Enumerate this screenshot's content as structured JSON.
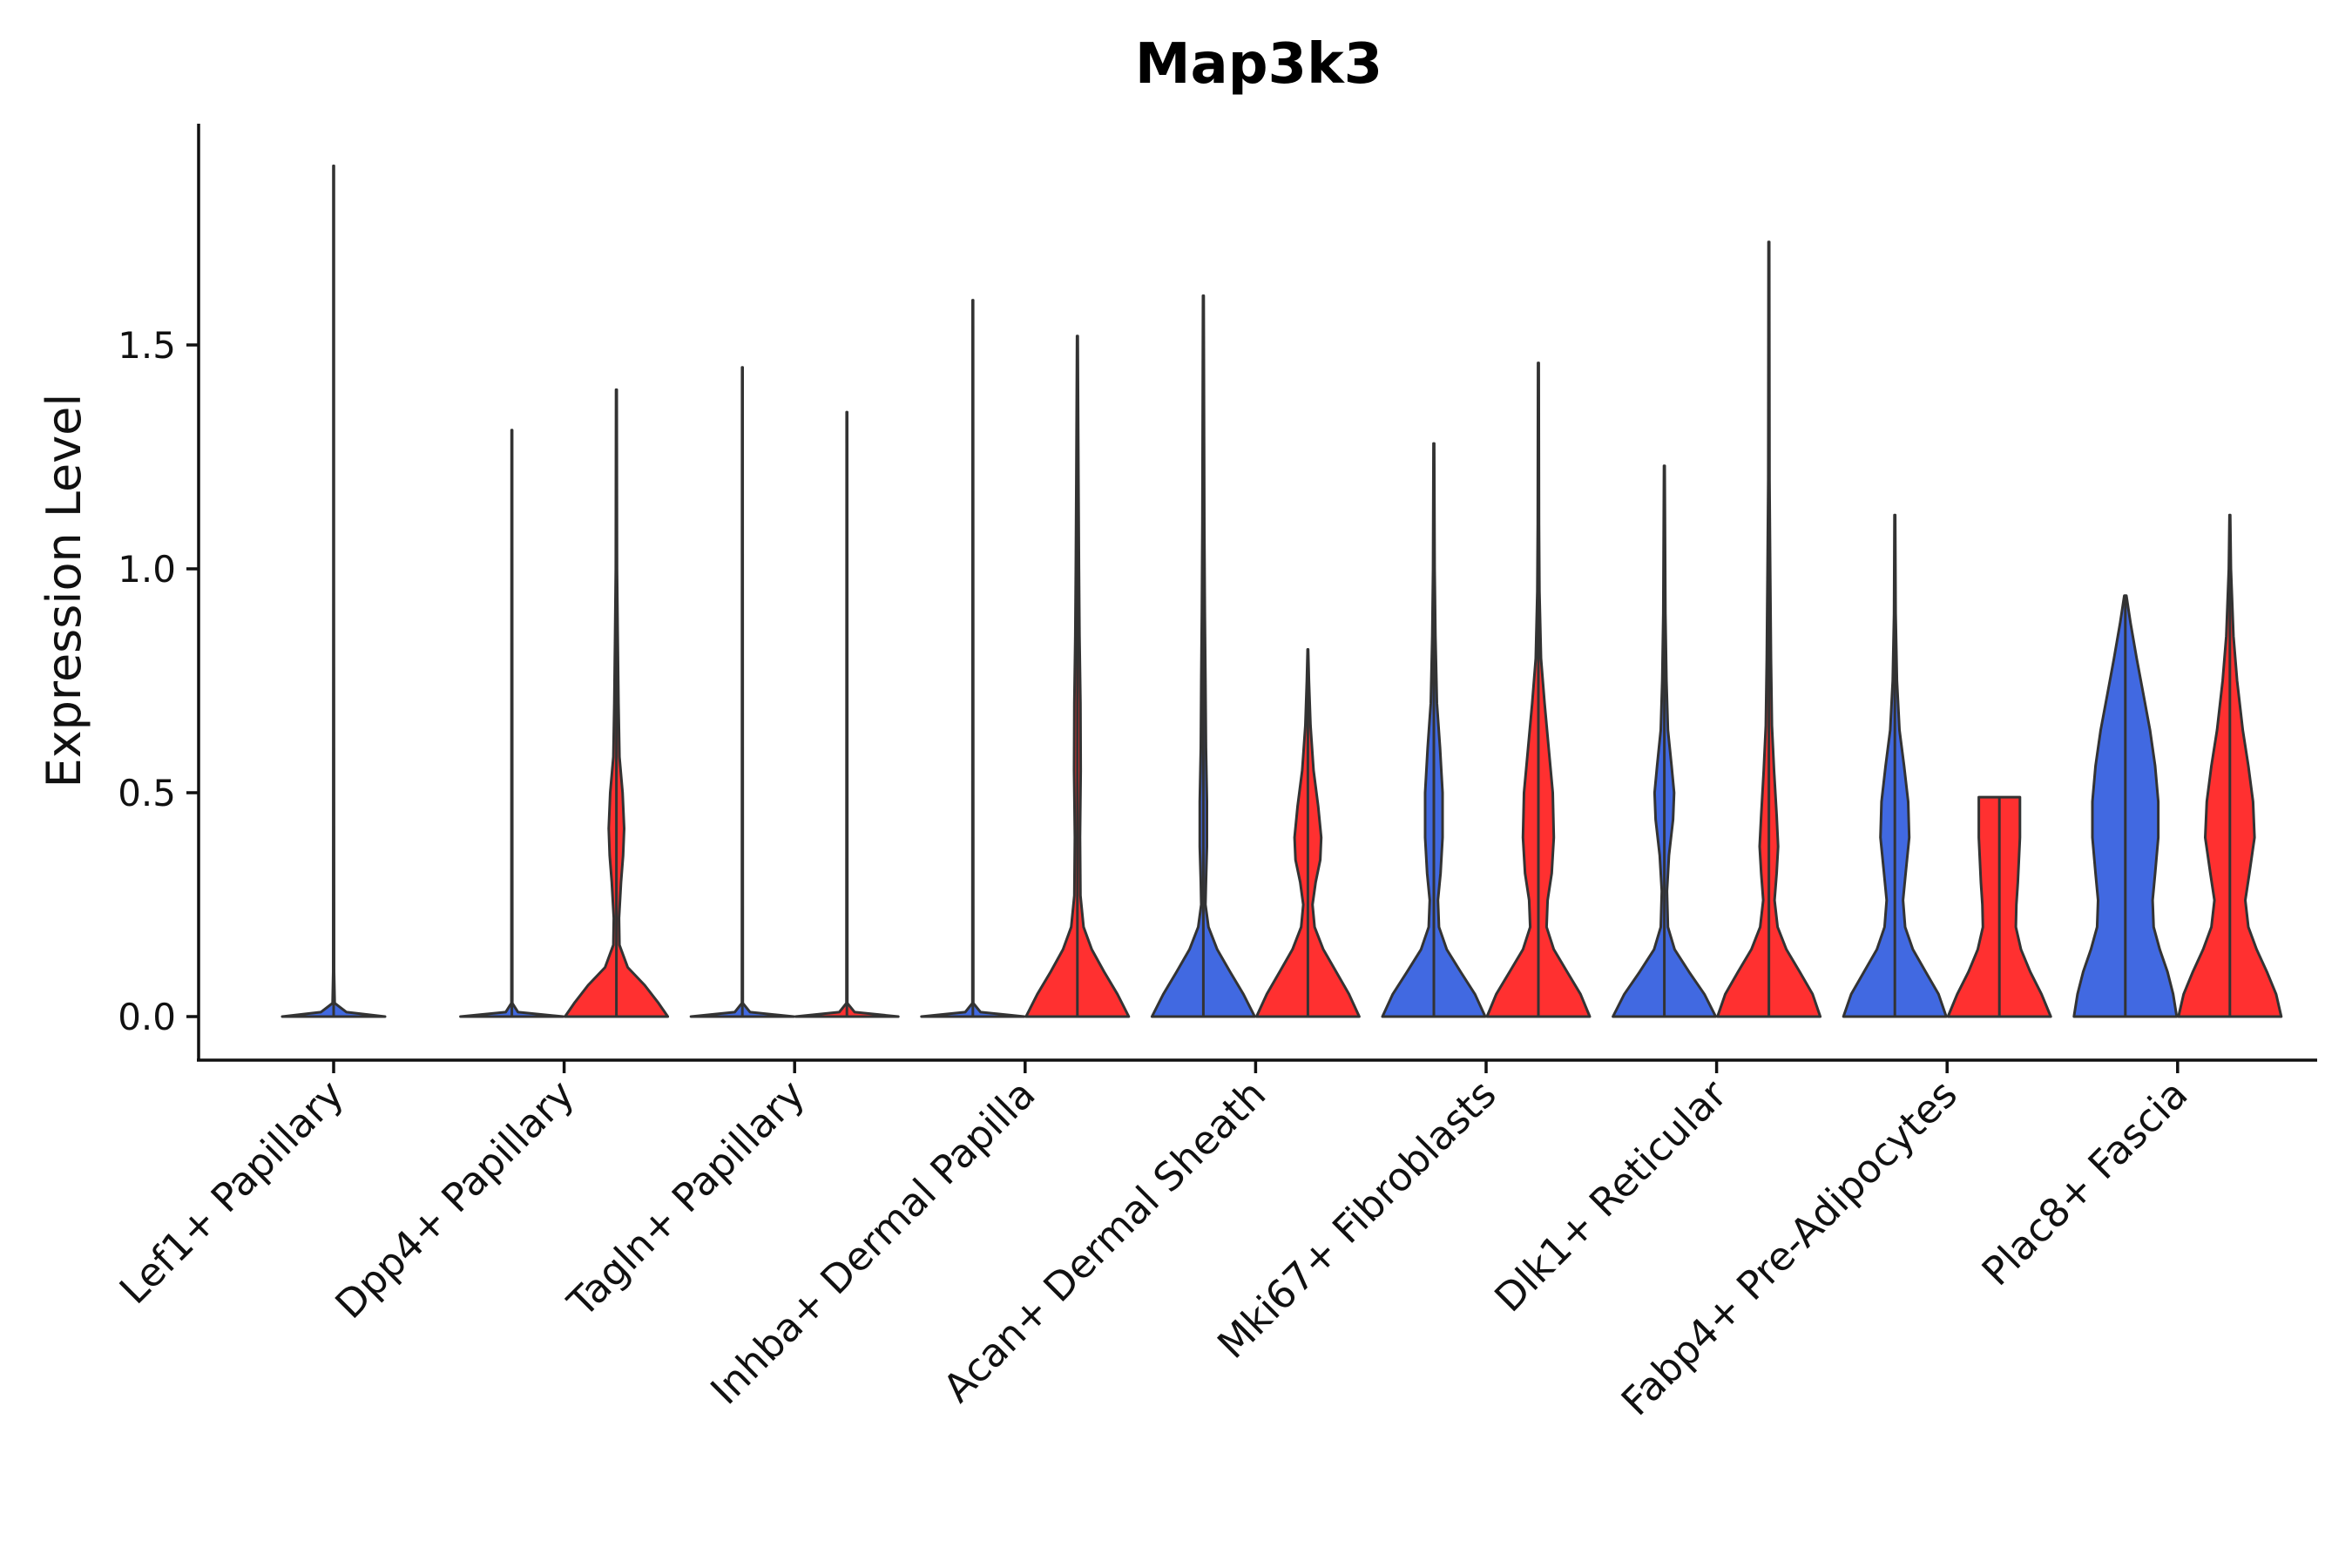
{
  "chart_data": {
    "type": "violin",
    "title": "Map3k3",
    "xlabel": "",
    "ylabel": "Expression Level",
    "ylim": [
      -0.1,
      1.95
    ],
    "yticks": [
      0.0,
      0.5,
      1.0,
      1.5
    ],
    "ytick_labels": [
      "0.0",
      "0.5",
      "1.0",
      "1.5"
    ],
    "grid": false,
    "legend": "none",
    "series_colors": {
      "blue": "#4169e1",
      "red": "#ff3030",
      "outline": "#333333"
    },
    "categories": [
      {
        "label": "Lef1+ Papillary",
        "violins": [
          {
            "color": "blue",
            "max": 1.9,
            "profile": [
              [
                0,
                1
              ],
              [
                0.01,
                0.25
              ],
              [
                0.03,
                0.02
              ],
              [
                0.1,
                0.008
              ],
              [
                0.6,
                0.006
              ],
              [
                1.0,
                0.005
              ],
              [
                1.9,
                0.005
              ]
            ]
          }
        ]
      },
      {
        "label": "Dpp4+ Papillary",
        "violins": [
          {
            "color": "blue",
            "max": 1.31,
            "profile": [
              [
                0,
                1
              ],
              [
                0.01,
                0.12
              ],
              [
                0.03,
                0.008
              ],
              [
                1.31,
                0.005
              ]
            ]
          },
          {
            "color": "red",
            "max": 1.4,
            "profile": [
              [
                0,
                1
              ],
              [
                0.03,
                0.82
              ],
              [
                0.07,
                0.55
              ],
              [
                0.11,
                0.22
              ],
              [
                0.16,
                0.06
              ],
              [
                0.22,
                0.05
              ],
              [
                0.3,
                0.09
              ],
              [
                0.36,
                0.13
              ],
              [
                0.42,
                0.15
              ],
              [
                0.5,
                0.12
              ],
              [
                0.58,
                0.06
              ],
              [
                0.7,
                0.04
              ],
              [
                0.85,
                0.025
              ],
              [
                1.0,
                0.012
              ],
              [
                1.4,
                0.006
              ]
            ]
          }
        ]
      },
      {
        "label": "Tagln+ Papillary",
        "violins": [
          {
            "color": "blue",
            "max": 1.45,
            "profile": [
              [
                0,
                1
              ],
              [
                0.01,
                0.15
              ],
              [
                0.03,
                0.008
              ],
              [
                1.45,
                0.005
              ]
            ]
          },
          {
            "color": "red",
            "max": 1.35,
            "profile": [
              [
                0,
                1
              ],
              [
                0.01,
                0.15
              ],
              [
                0.03,
                0.008
              ],
              [
                1.35,
                0.005
              ]
            ]
          }
        ]
      },
      {
        "label": "Inhba+ Dermal Papilla",
        "violins": [
          {
            "color": "blue",
            "max": 1.6,
            "profile": [
              [
                0,
                1
              ],
              [
                0.01,
                0.15
              ],
              [
                0.03,
                0.008
              ],
              [
                1.6,
                0.005
              ]
            ]
          },
          {
            "color": "red",
            "max": 1.52,
            "profile": [
              [
                0,
                1
              ],
              [
                0.05,
                0.78
              ],
              [
                0.1,
                0.52
              ],
              [
                0.15,
                0.28
              ],
              [
                0.2,
                0.12
              ],
              [
                0.27,
                0.06
              ],
              [
                0.4,
                0.05
              ],
              [
                0.55,
                0.065
              ],
              [
                0.7,
                0.06
              ],
              [
                0.85,
                0.04
              ],
              [
                1.0,
                0.03
              ],
              [
                1.2,
                0.02
              ],
              [
                1.52,
                0.006
              ]
            ]
          }
        ]
      },
      {
        "label": "Acan+ Dermal Sheath",
        "violins": [
          {
            "color": "blue",
            "max": 1.61,
            "profile": [
              [
                0,
                1
              ],
              [
                0.05,
                0.78
              ],
              [
                0.1,
                0.52
              ],
              [
                0.15,
                0.27
              ],
              [
                0.2,
                0.1
              ],
              [
                0.25,
                0.04
              ],
              [
                0.3,
                0.05
              ],
              [
                0.38,
                0.07
              ],
              [
                0.48,
                0.07
              ],
              [
                0.6,
                0.05
              ],
              [
                0.75,
                0.04
              ],
              [
                0.9,
                0.028
              ],
              [
                1.1,
                0.018
              ],
              [
                1.61,
                0.006
              ]
            ]
          },
          {
            "color": "red",
            "max": 0.82,
            "profile": [
              [
                0,
                1
              ],
              [
                0.05,
                0.8
              ],
              [
                0.1,
                0.55
              ],
              [
                0.15,
                0.3
              ],
              [
                0.2,
                0.13
              ],
              [
                0.25,
                0.09
              ],
              [
                0.3,
                0.15
              ],
              [
                0.35,
                0.24
              ],
              [
                0.4,
                0.26
              ],
              [
                0.47,
                0.2
              ],
              [
                0.55,
                0.11
              ],
              [
                0.65,
                0.05
              ],
              [
                0.75,
                0.02
              ],
              [
                0.82,
                0.005
              ]
            ]
          }
        ]
      },
      {
        "label": "Mki67+ Fibroblasts",
        "violins": [
          {
            "color": "blue",
            "max": 1.28,
            "profile": [
              [
                0,
                1
              ],
              [
                0.05,
                0.8
              ],
              [
                0.1,
                0.52
              ],
              [
                0.15,
                0.25
              ],
              [
                0.2,
                0.1
              ],
              [
                0.26,
                0.08
              ],
              [
                0.32,
                0.13
              ],
              [
                0.4,
                0.17
              ],
              [
                0.5,
                0.17
              ],
              [
                0.6,
                0.12
              ],
              [
                0.7,
                0.06
              ],
              [
                0.85,
                0.03
              ],
              [
                1.0,
                0.015
              ],
              [
                1.28,
                0.006
              ]
            ]
          },
          {
            "color": "red",
            "max": 1.46,
            "profile": [
              [
                0,
                1
              ],
              [
                0.05,
                0.82
              ],
              [
                0.1,
                0.56
              ],
              [
                0.15,
                0.3
              ],
              [
                0.2,
                0.16
              ],
              [
                0.26,
                0.18
              ],
              [
                0.32,
                0.26
              ],
              [
                0.4,
                0.3
              ],
              [
                0.5,
                0.28
              ],
              [
                0.6,
                0.2
              ],
              [
                0.7,
                0.12
              ],
              [
                0.8,
                0.05
              ],
              [
                0.95,
                0.02
              ],
              [
                1.1,
                0.012
              ],
              [
                1.46,
                0.006
              ]
            ]
          }
        ]
      },
      {
        "label": "Dlk1+ Reticular",
        "violins": [
          {
            "color": "blue",
            "max": 1.23,
            "profile": [
              [
                0,
                1
              ],
              [
                0.05,
                0.78
              ],
              [
                0.1,
                0.48
              ],
              [
                0.15,
                0.2
              ],
              [
                0.2,
                0.07
              ],
              [
                0.28,
                0.05
              ],
              [
                0.36,
                0.09
              ],
              [
                0.44,
                0.17
              ],
              [
                0.5,
                0.19
              ],
              [
                0.56,
                0.14
              ],
              [
                0.64,
                0.07
              ],
              [
                0.75,
                0.04
              ],
              [
                0.9,
                0.02
              ],
              [
                1.23,
                0.006
              ]
            ]
          },
          {
            "color": "red",
            "max": 1.73,
            "profile": [
              [
                0,
                1
              ],
              [
                0.05,
                0.85
              ],
              [
                0.1,
                0.6
              ],
              [
                0.15,
                0.34
              ],
              [
                0.2,
                0.17
              ],
              [
                0.26,
                0.11
              ],
              [
                0.32,
                0.15
              ],
              [
                0.38,
                0.18
              ],
              [
                0.45,
                0.15
              ],
              [
                0.55,
                0.1
              ],
              [
                0.65,
                0.06
              ],
              [
                0.8,
                0.04
              ],
              [
                1.0,
                0.025
              ],
              [
                1.2,
                0.012
              ],
              [
                1.73,
                0.006
              ]
            ]
          }
        ]
      },
      {
        "label": "Fabp4+ Pre-Adipocytes",
        "violins": [
          {
            "color": "blue",
            "max": 1.12,
            "profile": [
              [
                0,
                1
              ],
              [
                0.05,
                0.85
              ],
              [
                0.1,
                0.6
              ],
              [
                0.15,
                0.35
              ],
              [
                0.2,
                0.2
              ],
              [
                0.26,
                0.16
              ],
              [
                0.32,
                0.21
              ],
              [
                0.4,
                0.28
              ],
              [
                0.48,
                0.26
              ],
              [
                0.56,
                0.18
              ],
              [
                0.64,
                0.09
              ],
              [
                0.75,
                0.04
              ],
              [
                0.9,
                0.015
              ],
              [
                1.12,
                0.006
              ]
            ]
          },
          {
            "color": "red",
            "max": 0.49,
            "profile": [
              [
                0,
                1
              ],
              [
                0.05,
                0.82
              ],
              [
                0.1,
                0.6
              ],
              [
                0.15,
                0.42
              ],
              [
                0.2,
                0.32
              ],
              [
                0.25,
                0.33
              ],
              [
                0.3,
                0.36
              ],
              [
                0.35,
                0.38
              ],
              [
                0.4,
                0.4
              ],
              [
                0.45,
                0.4
              ],
              [
                0.49,
                0.4
              ]
            ]
          }
        ]
      },
      {
        "label": "Plac8+ Fascia",
        "violins": [
          {
            "color": "blue",
            "max": 0.94,
            "profile": [
              [
                0,
                1
              ],
              [
                0.05,
                0.93
              ],
              [
                0.1,
                0.82
              ],
              [
                0.15,
                0.67
              ],
              [
                0.2,
                0.55
              ],
              [
                0.26,
                0.53
              ],
              [
                0.32,
                0.58
              ],
              [
                0.4,
                0.64
              ],
              [
                0.48,
                0.64
              ],
              [
                0.56,
                0.58
              ],
              [
                0.64,
                0.48
              ],
              [
                0.72,
                0.35
              ],
              [
                0.8,
                0.22
              ],
              [
                0.88,
                0.1
              ],
              [
                0.94,
                0.02
              ]
            ]
          },
          {
            "color": "red",
            "max": 1.12,
            "profile": [
              [
                0,
                1
              ],
              [
                0.05,
                0.9
              ],
              [
                0.1,
                0.72
              ],
              [
                0.15,
                0.52
              ],
              [
                0.2,
                0.36
              ],
              [
                0.26,
                0.3
              ],
              [
                0.32,
                0.38
              ],
              [
                0.4,
                0.48
              ],
              [
                0.48,
                0.45
              ],
              [
                0.56,
                0.36
              ],
              [
                0.64,
                0.25
              ],
              [
                0.75,
                0.14
              ],
              [
                0.85,
                0.07
              ],
              [
                1.0,
                0.02
              ],
              [
                1.12,
                0.006
              ]
            ]
          }
        ]
      }
    ]
  }
}
